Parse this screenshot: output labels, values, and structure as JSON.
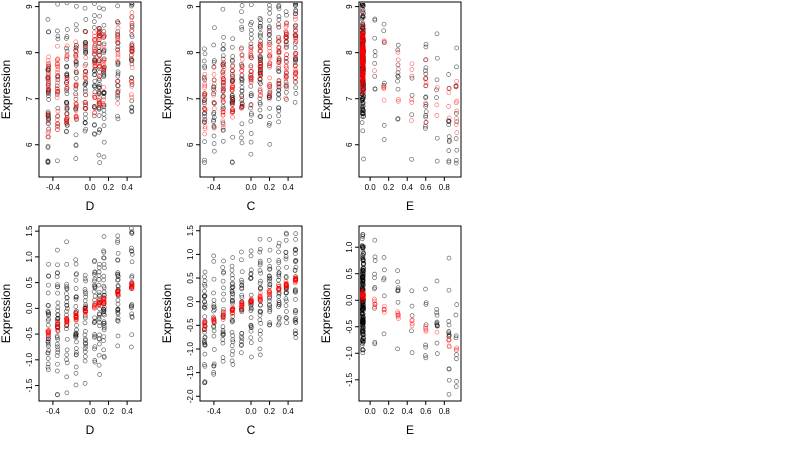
{
  "figure": {
    "background": "#ffffff",
    "layout": "2 rows x 3 columns"
  },
  "chart_data": [
    {
      "type": "scatter",
      "panel": "top-left",
      "xlabel": "D",
      "ylabel": "Expression",
      "xlim": [
        -0.55,
        0.55
      ],
      "ylim": [
        5.3,
        9.1
      ],
      "xticks": [
        -0.4,
        0.0,
        0.2,
        0.4
      ],
      "xtick_labels": [
        "-0.4",
        "0.0",
        "0.2",
        "0.4"
      ],
      "yticks": [
        6,
        7,
        8,
        9
      ],
      "ytick_labels": [
        "6",
        "7",
        "8",
        "9"
      ],
      "x_levels": [
        -0.45,
        -0.35,
        -0.25,
        -0.15,
        -0.05,
        0.05,
        0.1,
        0.15,
        0.3,
        0.45
      ],
      "series": [
        {
          "color": "#000000",
          "kind": "observed",
          "count": 300,
          "trend": {
            "slope": 1.0,
            "intercept": 7.5
          },
          "spread": 0.75,
          "low": 5.6,
          "high": 9.1
        },
        {
          "color": "#ff0000",
          "kind": "fitted",
          "count": 220,
          "trend": {
            "slope": 1.0,
            "intercept": 7.6
          },
          "bands": [
            -0.75,
            0.0,
            0.55
          ],
          "spread": 0.15
        }
      ]
    },
    {
      "type": "scatter",
      "panel": "top-middle",
      "xlabel": "C",
      "ylabel": "Expression",
      "xlim": [
        -0.55,
        0.55
      ],
      "ylim": [
        5.3,
        9.1
      ],
      "xticks": [
        -0.4,
        0.0,
        0.2,
        0.4
      ],
      "xtick_labels": [
        "-0.4",
        "0.0",
        "0.2",
        "0.4"
      ],
      "yticks": [
        6,
        7,
        8,
        9
      ],
      "ytick_labels": [
        "6",
        "7",
        "8",
        "9"
      ],
      "x_levels": [
        -0.5,
        -0.4,
        -0.3,
        -0.2,
        -0.1,
        0.0,
        0.1,
        0.2,
        0.3,
        0.38,
        0.48
      ],
      "series": [
        {
          "color": "#000000",
          "kind": "observed",
          "count": 300,
          "trend": {
            "slope": 1.2,
            "intercept": 7.55
          },
          "spread": 0.75,
          "low": 5.6,
          "high": 9.1
        },
        {
          "color": "#ff0000",
          "kind": "fitted",
          "count": 220,
          "trend": {
            "slope": 1.2,
            "intercept": 7.55
          },
          "bands": [
            -0.55,
            0.0,
            0.35
          ],
          "spread": 0.15
        }
      ]
    },
    {
      "type": "scatter",
      "panel": "top-right",
      "xlabel": "E",
      "ylabel": "Expression",
      "xlim": [
        -0.12,
        0.98
      ],
      "ylim": [
        5.3,
        9.1
      ],
      "xticks": [
        0.0,
        0.2,
        0.4,
        0.6,
        0.8
      ],
      "xtick_labels": [
        "0.0",
        "0.2",
        "0.4",
        "0.6",
        "0.8"
      ],
      "yticks": [
        6,
        7,
        8,
        9
      ],
      "ytick_labels": [
        "6",
        "7",
        "8",
        "9"
      ],
      "x_levels": [
        -0.08,
        0.05,
        0.15,
        0.3,
        0.45,
        0.6,
        0.72,
        0.85,
        0.93
      ],
      "series": [
        {
          "color": "#000000",
          "kind": "observed",
          "count": 280,
          "trend": {
            "slope": -0.9,
            "intercept": 7.6
          },
          "spread": 0.75,
          "low": 5.6,
          "high": 9.1,
          "cluster_x": -0.08,
          "cluster_share": 0.7
        },
        {
          "color": "#ff0000",
          "kind": "fitted",
          "count": 200,
          "trend": {
            "slope": -1.0,
            "intercept": 7.8
          },
          "bands": [
            -0.4,
            0.0,
            0.4
          ],
          "spread": 0.2,
          "cluster_x": -0.08,
          "cluster_share": 0.75
        }
      ]
    },
    {
      "type": "scatter",
      "panel": "bottom-left",
      "xlabel": "D",
      "ylabel": "Expression",
      "xlim": [
        -0.55,
        0.55
      ],
      "ylim": [
        -1.8,
        1.6
      ],
      "xticks": [
        -0.4,
        0.0,
        0.2,
        0.4
      ],
      "xtick_labels": [
        "-0.4",
        "0.0",
        "0.2",
        "0.4"
      ],
      "yticks": [
        -1.5,
        -1.0,
        -0.5,
        0.0,
        0.5,
        1.0,
        1.5
      ],
      "ytick_labels": [
        "-1.5",
        "-1.0",
        "-0.5",
        "0.0",
        "0.5",
        "1.0",
        "1.5"
      ],
      "x_levels": [
        -0.45,
        -0.35,
        -0.25,
        -0.15,
        -0.05,
        0.05,
        0.1,
        0.15,
        0.3,
        0.45
      ],
      "series": [
        {
          "color": "#000000",
          "kind": "observed",
          "count": 300,
          "trend": {
            "slope": 1.0,
            "intercept": 0.0
          },
          "spread": 0.6,
          "low": -1.7,
          "high": 1.6
        },
        {
          "color": "#ff0000",
          "kind": "fitted",
          "count": 120,
          "trend": {
            "slope": 1.0,
            "intercept": 0.0
          },
          "bands": [
            0.0
          ],
          "spread": 0.04
        }
      ]
    },
    {
      "type": "scatter",
      "panel": "bottom-middle",
      "xlabel": "C",
      "ylabel": "Expression",
      "xlim": [
        -0.55,
        0.55
      ],
      "ylim": [
        -2.1,
        1.6
      ],
      "xticks": [
        -0.4,
        0.0,
        0.2,
        0.4
      ],
      "xtick_labels": [
        "-0.4",
        "0.0",
        "0.2",
        "0.4"
      ],
      "yticks": [
        -2.0,
        -1.5,
        -1.0,
        -0.5,
        0.0,
        0.5,
        1.0,
        1.5
      ],
      "ytick_labels": [
        "-2.0",
        "-1.5",
        "-1.0",
        "-0.5",
        "0.0",
        "0.5",
        "1.0",
        "1.5"
      ],
      "x_levels": [
        -0.5,
        -0.4,
        -0.3,
        -0.2,
        -0.1,
        0.0,
        0.1,
        0.2,
        0.3,
        0.38,
        0.48
      ],
      "series": [
        {
          "color": "#000000",
          "kind": "observed",
          "count": 300,
          "trend": {
            "slope": 0.95,
            "intercept": 0.0
          },
          "spread": 0.6,
          "low": -2.05,
          "high": 1.5
        },
        {
          "color": "#ff0000",
          "kind": "fitted",
          "count": 120,
          "trend": {
            "slope": 0.95,
            "intercept": 0.0
          },
          "bands": [
            0.0
          ],
          "spread": 0.04
        }
      ]
    },
    {
      "type": "scatter",
      "panel": "bottom-right",
      "xlabel": "E",
      "ylabel": "Expression",
      "xlim": [
        -0.12,
        0.98
      ],
      "ylim": [
        -1.9,
        1.4
      ],
      "xticks": [
        0.0,
        0.2,
        0.4,
        0.6,
        0.8
      ],
      "xtick_labels": [
        "0.0",
        "0.2",
        "0.4",
        "0.6",
        "0.8"
      ],
      "yticks": [
        -1.5,
        -1.0,
        -0.5,
        0.0,
        0.5,
        1.0
      ],
      "ytick_labels": [
        "-1.5",
        "-1.0",
        "-0.5",
        "0.0",
        "0.5",
        "1.0"
      ],
      "x_levels": [
        -0.08,
        0.05,
        0.15,
        0.3,
        0.45,
        0.6,
        0.72,
        0.85,
        0.93
      ],
      "series": [
        {
          "color": "#000000",
          "kind": "observed",
          "count": 260,
          "trend": {
            "slope": -0.95,
            "intercept": 0.0
          },
          "spread": 0.55,
          "low": -1.8,
          "high": 1.3,
          "cluster_x": -0.08,
          "cluster_share": 0.7
        },
        {
          "color": "#ff0000",
          "kind": "fitted",
          "count": 60,
          "trend": {
            "slope": -0.95,
            "intercept": 0.0
          },
          "bands": [
            0.0
          ],
          "spread": 0.05,
          "cluster_x": -0.08,
          "cluster_share": 0.4
        }
      ]
    }
  ]
}
